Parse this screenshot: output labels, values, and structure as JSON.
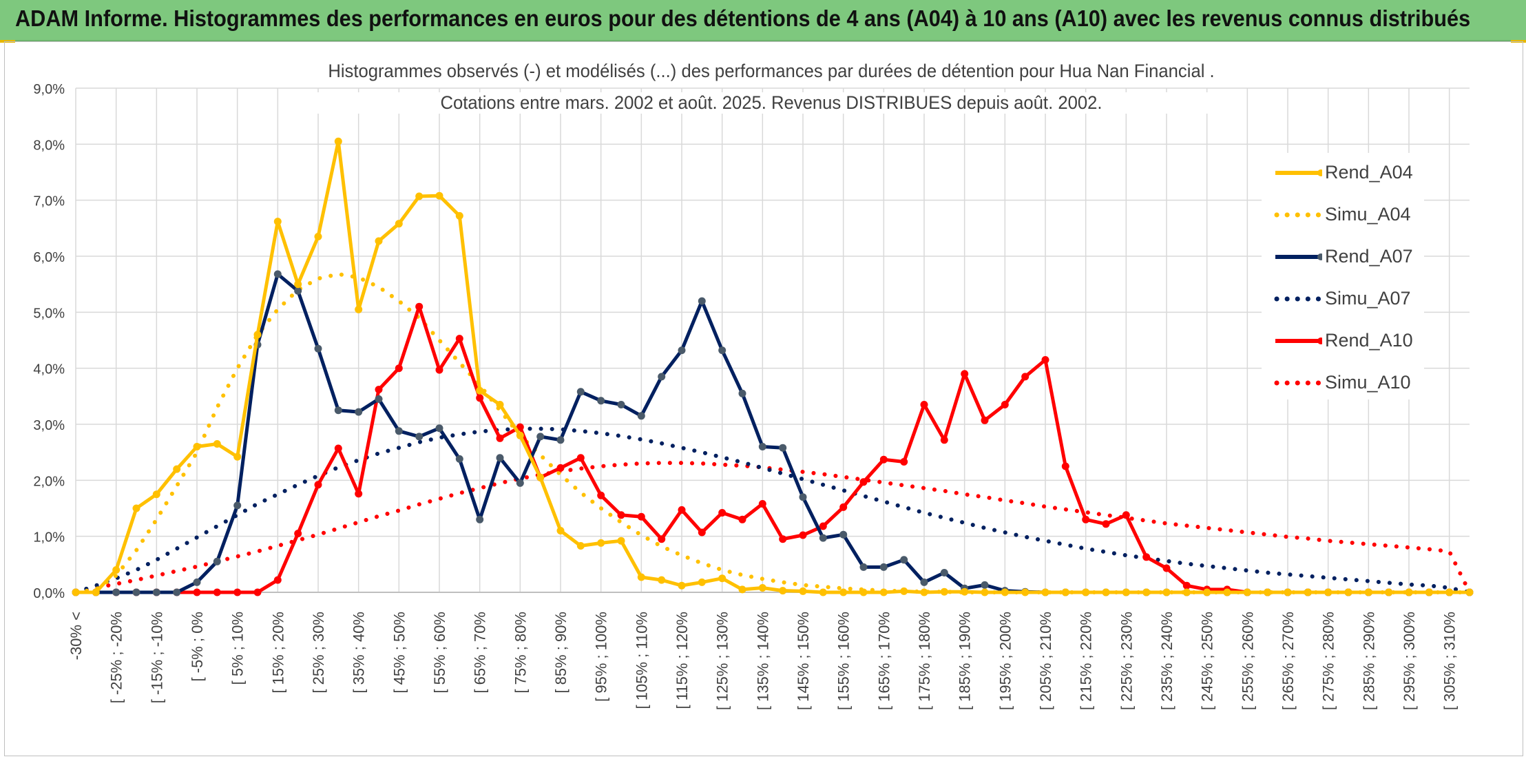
{
  "banner": {
    "title": "ADAM Informe. Histogrammes des performances en euros pour des détentions de 4 ans (A04) à 10 ans (A10) avec les revenus connus distribués"
  },
  "colors": {
    "banner_bg": "#7ec87e",
    "A04": "#ffc000",
    "A07": "#002060",
    "A07_marker": "#4a5a6a",
    "A10": "#ff0000",
    "grid": "#d9d9d9",
    "text": "#404040"
  },
  "chart_data": {
    "type": "line",
    "title": "Histogrammes observés (-) et modélisés (...) des performances par durées de détention pour Hua Nan Financial .",
    "subtitle": "Cotations entre mars. 2002 et août. 2025. Revenus DISTRIBUES depuis août. 2002.",
    "xlabel": "",
    "ylabel": "",
    "ylim": [
      0,
      9
    ],
    "y_ticks": [
      "0,0%",
      "1,0%",
      "2,0%",
      "3,0%",
      "4,0%",
      "5,0%",
      "6,0%",
      "7,0%",
      "8,0%",
      "9,0%"
    ],
    "grid": true,
    "legend_position": "right",
    "categories": [
      "-30% <",
      "",
      "[ -25% ; -20%",
      "",
      "[ -15% ; -10%",
      "",
      "[ -5% ; 0%",
      "",
      "[ 5% ; 10%",
      "",
      "[ 15% ; 20%",
      "",
      "[ 25% ; 30%",
      "",
      "[ 35% ; 40%",
      "",
      "[ 45% ; 50%",
      "",
      "[ 55% ; 60%",
      "",
      "[ 65% ; 70%",
      "",
      "[ 75% ; 80%",
      "",
      "[ 85% ; 90%",
      "",
      "[ 95% ; 100%",
      "",
      "[ 105% ; 110%",
      "",
      "[ 115% ; 120%",
      "",
      "[ 125% ; 130%",
      "",
      "[ 135% ; 140%",
      "",
      "[ 145% ; 150%",
      "",
      "[ 155% ; 160%",
      "",
      "[ 165% ; 170%",
      "",
      "[ 175% ; 180%",
      "",
      "[ 185% ; 190%",
      "",
      "[ 195% ; 200%",
      "",
      "[ 205% ; 210%",
      "",
      "[ 215% ; 220%",
      "",
      "[ 225% ; 230%",
      "",
      "[ 235% ; 240%",
      "",
      "[ 245% ; 250%",
      "",
      "[ 255% ; 260%",
      "",
      "[ 265% ; 270%",
      "",
      "[ 275% ; 280%",
      "",
      "[ 285% ; 290%",
      "",
      "[ 295% ; 300%",
      "",
      "[ 305% ; 310%",
      ""
    ],
    "series": [
      {
        "name": "Rend_A04",
        "style": "solid",
        "color": "#ffc000",
        "values": [
          0,
          0,
          0.4,
          1.5,
          1.75,
          2.2,
          2.6,
          2.65,
          2.42,
          4.6,
          6.62,
          5.5,
          6.35,
          8.05,
          5.05,
          6.27,
          6.58,
          7.07,
          7.08,
          6.72,
          3.6,
          3.35,
          2.8,
          2.05,
          1.1,
          0.83,
          0.88,
          0.92,
          0.27,
          0.22,
          0.12,
          0.18,
          0.25,
          0.05,
          0.08,
          0.03,
          0.02,
          0,
          0,
          0,
          0,
          0.02,
          0,
          0.01,
          0.01,
          0,
          0,
          0,
          0,
          0,
          0,
          0,
          0,
          0,
          0,
          0,
          0,
          0,
          0,
          0,
          0,
          0,
          0,
          0,
          0,
          0,
          0,
          0,
          0,
          0
        ]
      },
      {
        "name": "Simu_A04",
        "style": "dotted",
        "color": "#ffc000",
        "values": [
          0,
          0.05,
          0.3,
          0.75,
          1.3,
          1.9,
          2.5,
          3.3,
          4.0,
          4.6,
          5.05,
          5.4,
          5.6,
          5.68,
          5.62,
          5.45,
          5.2,
          4.9,
          4.5,
          4.1,
          3.7,
          3.25,
          2.8,
          2.45,
          2.1,
          1.78,
          1.5,
          1.25,
          1.02,
          0.82,
          0.66,
          0.52,
          0.4,
          0.31,
          0.24,
          0.18,
          0.13,
          0.1,
          0.07,
          0.05,
          0.03,
          0.02,
          0.01,
          0.01,
          0,
          0,
          0,
          0,
          0,
          0,
          0,
          0,
          0,
          0,
          0,
          0,
          0,
          0,
          0,
          0,
          0,
          0,
          0,
          0,
          0,
          0,
          0,
          0,
          0,
          0
        ]
      },
      {
        "name": "Rend_A07",
        "style": "solid",
        "color": "#002060",
        "values": [
          0,
          0,
          0,
          0,
          0,
          0,
          0.18,
          0.55,
          1.55,
          4.42,
          5.68,
          5.38,
          4.35,
          3.25,
          3.22,
          3.45,
          2.88,
          2.78,
          2.93,
          2.38,
          1.3,
          2.4,
          1.95,
          2.78,
          2.72,
          3.58,
          3.42,
          3.35,
          3.15,
          3.85,
          4.32,
          5.2,
          4.32,
          3.55,
          2.6,
          2.58,
          1.7,
          0.97,
          1.03,
          0.45,
          0.45,
          0.58,
          0.18,
          0.35,
          0.07,
          0.13,
          0.03,
          0.01,
          0,
          0,
          0,
          0,
          0,
          0,
          0,
          0,
          0,
          0,
          0,
          0,
          0,
          0,
          0,
          0,
          0,
          0,
          0,
          0,
          0,
          0
        ]
      },
      {
        "name": "Simu_A07",
        "style": "dotted",
        "color": "#002060",
        "values": [
          0,
          0.12,
          0.25,
          0.4,
          0.58,
          0.78,
          0.98,
          1.18,
          1.38,
          1.58,
          1.75,
          1.92,
          2.08,
          2.23,
          2.36,
          2.48,
          2.58,
          2.68,
          2.76,
          2.82,
          2.87,
          2.9,
          2.92,
          2.92,
          2.91,
          2.88,
          2.84,
          2.79,
          2.73,
          2.66,
          2.58,
          2.5,
          2.41,
          2.32,
          2.22,
          2.12,
          2.02,
          1.92,
          1.82,
          1.72,
          1.62,
          1.52,
          1.42,
          1.33,
          1.24,
          1.15,
          1.07,
          0.99,
          0.92,
          0.85,
          0.78,
          0.72,
          0.66,
          0.61,
          0.56,
          0.51,
          0.47,
          0.43,
          0.39,
          0.35,
          0.32,
          0.29,
          0.26,
          0.23,
          0.2,
          0.17,
          0.14,
          0.12,
          0.08,
          0
        ]
      },
      {
        "name": "Rend_A10",
        "style": "solid",
        "color": "#ff0000",
        "values": [
          0,
          0,
          0,
          0,
          0,
          0,
          0,
          0,
          0,
          0,
          0.22,
          1.05,
          1.92,
          2.57,
          1.76,
          3.62,
          4.0,
          5.1,
          3.97,
          4.53,
          3.47,
          2.75,
          2.95,
          2.05,
          2.22,
          2.4,
          1.73,
          1.38,
          1.35,
          0.95,
          1.47,
          1.07,
          1.42,
          1.3,
          1.58,
          0.95,
          1.02,
          1.18,
          1.52,
          1.97,
          2.37,
          2.33,
          3.35,
          2.72,
          3.9,
          3.07,
          3.35,
          3.85,
          4.15,
          2.25,
          1.3,
          1.22,
          1.38,
          0.63,
          0.43,
          0.12,
          0.05,
          0.05,
          0,
          0,
          0,
          0,
          0,
          0,
          0,
          0,
          0,
          0,
          0,
          0
        ]
      },
      {
        "name": "Simu_A10",
        "style": "dotted",
        "color": "#ff0000",
        "values": [
          0,
          0.08,
          0.15,
          0.22,
          0.3,
          0.38,
          0.46,
          0.55,
          0.64,
          0.73,
          0.83,
          0.93,
          1.03,
          1.14,
          1.25,
          1.36,
          1.46,
          1.57,
          1.67,
          1.77,
          1.86,
          1.95,
          2.03,
          2.1,
          2.16,
          2.21,
          2.25,
          2.28,
          2.3,
          2.31,
          2.31,
          2.3,
          2.28,
          2.26,
          2.23,
          2.19,
          2.15,
          2.11,
          2.06,
          2.01,
          1.96,
          1.91,
          1.86,
          1.81,
          1.75,
          1.7,
          1.64,
          1.59,
          1.53,
          1.48,
          1.43,
          1.38,
          1.33,
          1.28,
          1.23,
          1.19,
          1.15,
          1.11,
          1.07,
          1.03,
          0.99,
          0.96,
          0.92,
          0.89,
          0.86,
          0.83,
          0.8,
          0.77,
          0.73,
          0
        ]
      }
    ]
  }
}
